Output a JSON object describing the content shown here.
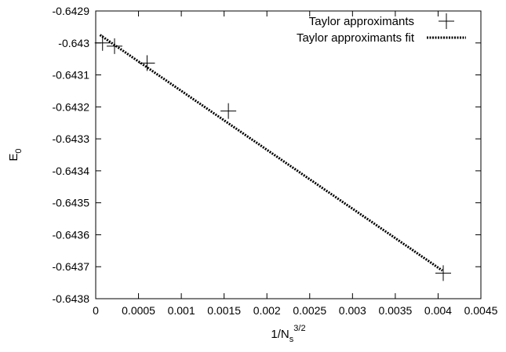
{
  "chart_data": {
    "type": "scatter",
    "xlabel": {
      "base": "1/N",
      "sub": "s",
      "sup": "3/2"
    },
    "ylabel": {
      "base": "E",
      "sub": "0"
    },
    "xlim": [
      0,
      0.0045
    ],
    "ylim": [
      -0.6438,
      -0.6429
    ],
    "xticks": [
      "0",
      "0.0005",
      "0.001",
      "0.0015",
      "0.002",
      "0.0025",
      "0.003",
      "0.0035",
      "0.004",
      "0.0045"
    ],
    "yticks": [
      "-0.6429",
      "-0.643",
      "-0.6431",
      "-0.6432",
      "-0.6433",
      "-0.6434",
      "-0.6435",
      "-0.6436",
      "-0.6437",
      "-0.6438"
    ],
    "grid": false,
    "legend_position": "top-right",
    "series": [
      {
        "name": "Taylor approximants",
        "marker": "plus",
        "x": [
          8e-05,
          0.00022,
          0.0006,
          0.00155,
          0.00406
        ],
        "y": [
          -0.643,
          -0.64301,
          -0.643063,
          -0.643213,
          -0.64372
        ]
      },
      {
        "name": "Taylor approximants fit",
        "style": "dotted-line",
        "x": [
          5e-05,
          0.00405
        ],
        "y": [
          -0.642975,
          -0.643712
        ]
      }
    ]
  }
}
